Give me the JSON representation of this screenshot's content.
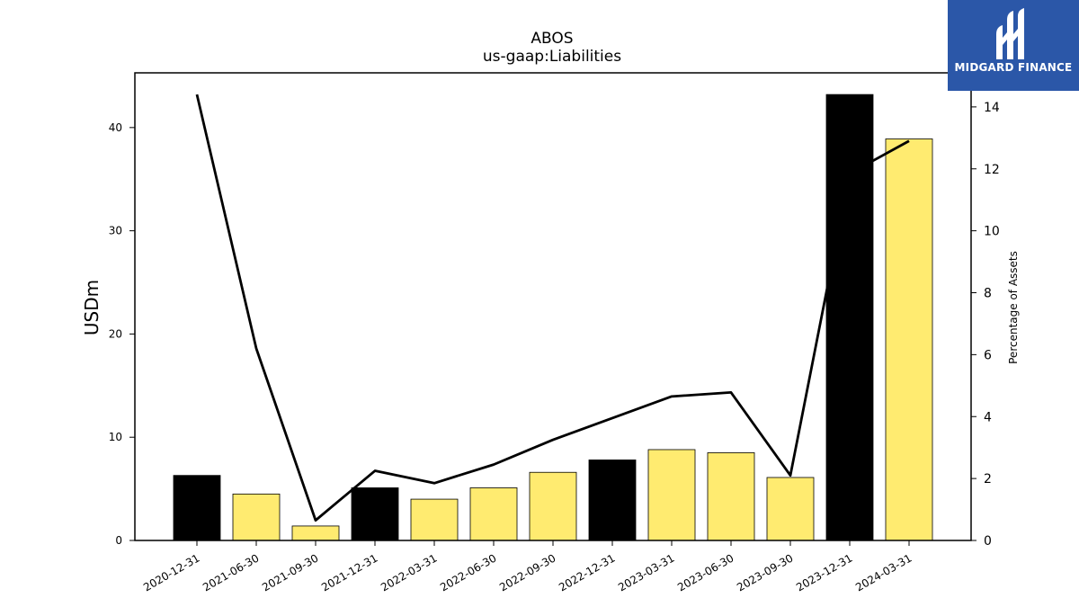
{
  "chart_data": {
    "type": "bar",
    "title": "ABOS",
    "subtitle": "us-gaap:Liabilities",
    "ylabel": "USDm",
    "y2label": "Percentage of Assets",
    "categories": [
      "2020-12-31",
      "2021-06-30",
      "2021-09-30",
      "2021-12-31",
      "2022-03-31",
      "2022-06-30",
      "2022-09-30",
      "2022-12-31",
      "2023-03-31",
      "2023-06-30",
      "2023-09-30",
      "2023-12-31",
      "2024-03-31"
    ],
    "values": [
      6.3,
      4.5,
      1.4,
      5.1,
      4.0,
      5.1,
      6.6,
      7.8,
      8.8,
      8.5,
      6.1,
      43.2,
      38.9
    ],
    "bar_colors": [
      "#000000",
      "#ffeb70",
      "#ffeb70",
      "#000000",
      "#ffeb70",
      "#ffeb70",
      "#ffeb70",
      "#000000",
      "#ffeb70",
      "#ffeb70",
      "#ffeb70",
      "#000000",
      "#ffeb70"
    ],
    "line": {
      "axis": "right",
      "color": "#000000",
      "values": [
        14.4,
        6.2,
        0.65,
        2.25,
        1.85,
        2.45,
        3.25,
        3.95,
        4.65,
        4.78,
        2.1,
        11.85,
        12.9
      ]
    },
    "ylim": [
      0,
      45.3
    ],
    "y2lim": [
      0,
      15.1
    ],
    "yticks": [
      0,
      10,
      20,
      30,
      40
    ],
    "y2ticks": [
      0,
      2,
      4,
      6,
      8,
      10,
      12,
      14
    ]
  },
  "logo": {
    "text": "MIDGARD FINANCE",
    "background": "#2b57a8"
  }
}
